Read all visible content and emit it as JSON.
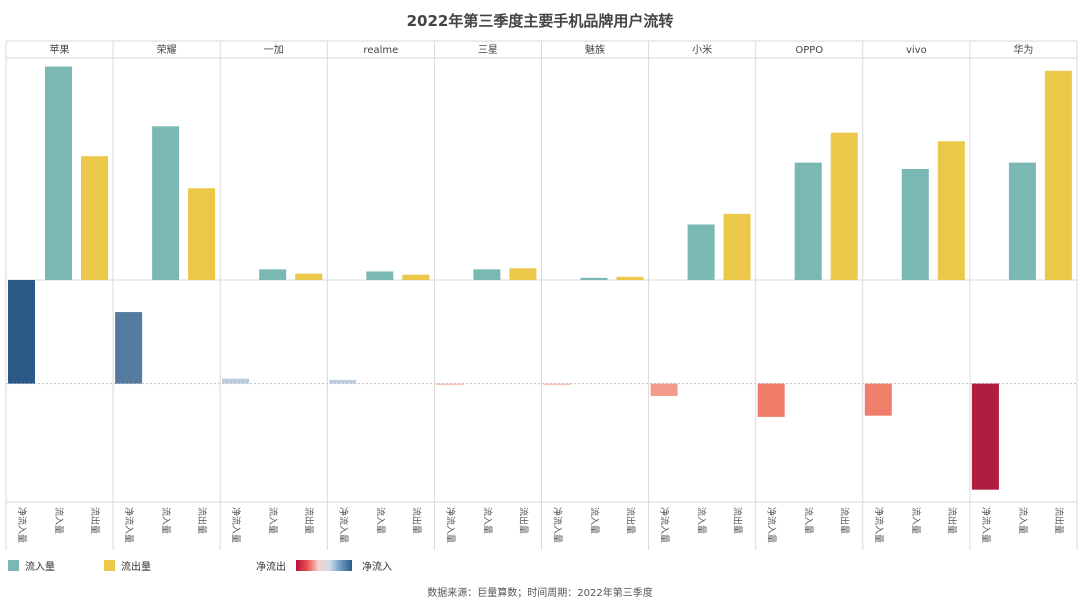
{
  "chart_data": {
    "type": "bar",
    "title": "2022年第三季度主要手机品牌用户流转",
    "categories": [
      "苹果",
      "荣耀",
      "一加",
      "realme",
      "三星",
      "魅族",
      "小米",
      "OPPO",
      "vivo",
      "华为"
    ],
    "measures": [
      "净流入量",
      "流入量",
      "流出量"
    ],
    "series": [
      {
        "name": "流入量",
        "color": "#7ab9b3",
        "values": [
          100,
          72,
          5,
          4,
          5,
          1,
          26,
          55,
          52,
          55
        ]
      },
      {
        "name": "流出量",
        "color": "#ebc849",
        "values": [
          58,
          43,
          3,
          2.5,
          5.5,
          1.5,
          31,
          69,
          65,
          98
        ]
      }
    ],
    "net_flow": [
      42,
      29,
      2,
      1.5,
      -0.5,
      -0.5,
      -5,
      -13.5,
      -13,
      -43
    ],
    "top_ylim": [
      0,
      104
    ],
    "bottom_ylim": [
      -48,
      42
    ],
    "legend": {
      "inflow_label": "流入量",
      "outflow_label": "流出量",
      "net_out_label": "净流出",
      "net_in_label": "净流入"
    },
    "source": "数据来源：巨量算数；时间周期：2022年第三季度"
  }
}
